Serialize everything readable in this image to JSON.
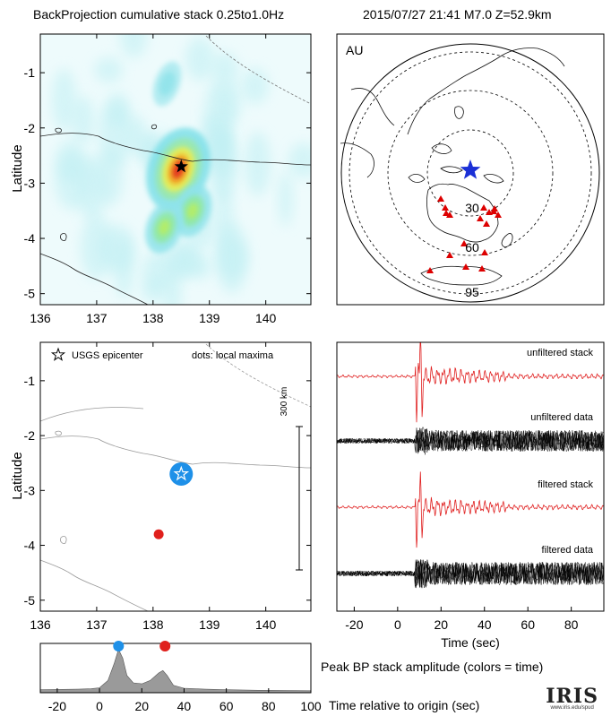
{
  "header": {
    "title": "BackProjection cumulative stack 0.25to1.0Hz",
    "event": "2015/07/27 21:41   M7.0  Z=52.9km"
  },
  "panels": {
    "map_top": {
      "ylabel": "Latitude",
      "xticks": [
        "136",
        "137",
        "138",
        "139",
        "140"
      ],
      "yticks": [
        "-1",
        "-2",
        "-3",
        "-4",
        "-5"
      ]
    },
    "array_map": {
      "label": "AU",
      "ring_labels": [
        "30",
        "60",
        "95"
      ]
    },
    "map_bottom": {
      "ylabel": "Latitude",
      "legend_epicenter": "USGS epicenter",
      "legend_dots": "dots: local maxima",
      "scale_label": "300 km",
      "xticks": [
        "136",
        "137",
        "138",
        "139",
        "140"
      ],
      "yticks": [
        "-1",
        "-2",
        "-3",
        "-4",
        "-5"
      ]
    },
    "traces": {
      "labels": [
        "unfiltered stack",
        "unfiltered data",
        "filtered stack",
        "filtered data"
      ],
      "xticks": [
        "-20",
        "0",
        "20",
        "40",
        "60",
        "80"
      ],
      "xlabel": "Time (sec)"
    },
    "amplitude": {
      "caption": "Peak BP stack amplitude (colors = time)",
      "xlabel": "Time relative to origin (sec)",
      "xticks": [
        "-20",
        "0",
        "20",
        "40",
        "60",
        "80",
        "100"
      ]
    }
  },
  "logo": {
    "text": "IRIS",
    "url": "www.iris.edu/spud"
  },
  "colors": {
    "epicenter_blue": "#1e90e8",
    "maxima_red": "#e0201c",
    "station_red": "#dd0000",
    "array_star": "#1a2fd6",
    "trace_red": "#e02020",
    "amplitude_fill": "#9a9a9a"
  },
  "chart_data": [
    {
      "type": "heatmap",
      "title": "BackProjection cumulative stack 0.25to1.0Hz",
      "xlabel": "",
      "ylabel": "Latitude",
      "xlim": [
        136,
        140.8
      ],
      "ylim": [
        -5.2,
        -0.3
      ],
      "epicenter": {
        "lon": 138.5,
        "lat": -2.7
      },
      "hotspots": [
        {
          "lon": 138.45,
          "lat": -2.75,
          "intensity": 1.0
        },
        {
          "lon": 138.7,
          "lat": -3.5,
          "intensity": 0.45
        },
        {
          "lon": 138.2,
          "lat": -3.8,
          "intensity": 0.4
        },
        {
          "lon": 138.25,
          "lat": -1.2,
          "intensity": 0.25
        }
      ]
    },
    {
      "type": "scatter",
      "title": "",
      "xlabel": "",
      "ylabel": "Latitude",
      "xlim": [
        136,
        140.8
      ],
      "ylim": [
        -5.2,
        -0.3
      ],
      "series": [
        {
          "name": "USGS epicenter",
          "points": [
            [
              138.5,
              -2.7
            ]
          ]
        },
        {
          "name": "dots: local maxima",
          "points": [
            [
              138.5,
              -2.7
            ],
            [
              138.1,
              -3.8
            ]
          ]
        }
      ]
    },
    {
      "type": "line",
      "title": "",
      "xlabel": "Time (sec)",
      "ylabel": "",
      "xlim": [
        -28,
        95
      ],
      "series": [
        {
          "name": "unfiltered stack"
        },
        {
          "name": "unfiltered data"
        },
        {
          "name": "filtered stack"
        },
        {
          "name": "filtered data"
        }
      ]
    },
    {
      "type": "area",
      "title": "Peak BP stack amplitude (colors = time)",
      "xlabel": "Time relative to origin (sec)",
      "ylabel": "",
      "xlim": [
        -28,
        100
      ],
      "x": [
        -28,
        -10,
        -4,
        0,
        4,
        7,
        9,
        11,
        13,
        16,
        20,
        24,
        28,
        30,
        32,
        35,
        40,
        50,
        60,
        75,
        100
      ],
      "y": [
        0.06,
        0.07,
        0.08,
        0.1,
        0.25,
        0.6,
        0.88,
        0.7,
        0.35,
        0.2,
        0.18,
        0.25,
        0.4,
        0.45,
        0.35,
        0.15,
        0.09,
        0.07,
        0.06,
        0.05,
        0.04
      ],
      "peaks": [
        {
          "time": 9,
          "color": "#1e90e8"
        },
        {
          "time": 31,
          "color": "#e0201c"
        }
      ]
    }
  ]
}
